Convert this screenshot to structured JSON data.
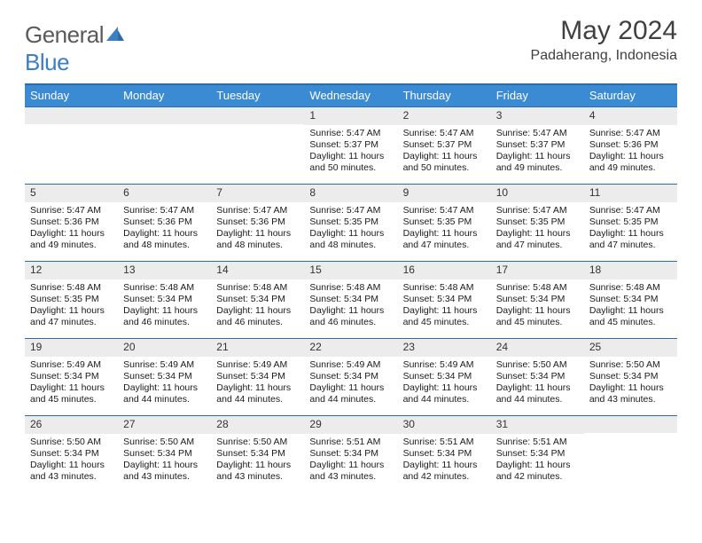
{
  "logo": {
    "word1": "General",
    "word2": "Blue"
  },
  "title": "May 2024",
  "location": "Padaherang, Indonesia",
  "header_bg": "#3b8bd4",
  "header_border": "#2e6da4",
  "daynum_bg": "#ececec",
  "text_color": "#1a1a1a",
  "day_names": [
    "Sunday",
    "Monday",
    "Tuesday",
    "Wednesday",
    "Thursday",
    "Friday",
    "Saturday"
  ],
  "weeks": [
    [
      {
        "n": "",
        "sr": "",
        "ss": "",
        "d1": "",
        "d2": ""
      },
      {
        "n": "",
        "sr": "",
        "ss": "",
        "d1": "",
        "d2": ""
      },
      {
        "n": "",
        "sr": "",
        "ss": "",
        "d1": "",
        "d2": ""
      },
      {
        "n": "1",
        "sr": "Sunrise: 5:47 AM",
        "ss": "Sunset: 5:37 PM",
        "d1": "Daylight: 11 hours",
        "d2": "and 50 minutes."
      },
      {
        "n": "2",
        "sr": "Sunrise: 5:47 AM",
        "ss": "Sunset: 5:37 PM",
        "d1": "Daylight: 11 hours",
        "d2": "and 50 minutes."
      },
      {
        "n": "3",
        "sr": "Sunrise: 5:47 AM",
        "ss": "Sunset: 5:37 PM",
        "d1": "Daylight: 11 hours",
        "d2": "and 49 minutes."
      },
      {
        "n": "4",
        "sr": "Sunrise: 5:47 AM",
        "ss": "Sunset: 5:36 PM",
        "d1": "Daylight: 11 hours",
        "d2": "and 49 minutes."
      }
    ],
    [
      {
        "n": "5",
        "sr": "Sunrise: 5:47 AM",
        "ss": "Sunset: 5:36 PM",
        "d1": "Daylight: 11 hours",
        "d2": "and 49 minutes."
      },
      {
        "n": "6",
        "sr": "Sunrise: 5:47 AM",
        "ss": "Sunset: 5:36 PM",
        "d1": "Daylight: 11 hours",
        "d2": "and 48 minutes."
      },
      {
        "n": "7",
        "sr": "Sunrise: 5:47 AM",
        "ss": "Sunset: 5:36 PM",
        "d1": "Daylight: 11 hours",
        "d2": "and 48 minutes."
      },
      {
        "n": "8",
        "sr": "Sunrise: 5:47 AM",
        "ss": "Sunset: 5:35 PM",
        "d1": "Daylight: 11 hours",
        "d2": "and 48 minutes."
      },
      {
        "n": "9",
        "sr": "Sunrise: 5:47 AM",
        "ss": "Sunset: 5:35 PM",
        "d1": "Daylight: 11 hours",
        "d2": "and 47 minutes."
      },
      {
        "n": "10",
        "sr": "Sunrise: 5:47 AM",
        "ss": "Sunset: 5:35 PM",
        "d1": "Daylight: 11 hours",
        "d2": "and 47 minutes."
      },
      {
        "n": "11",
        "sr": "Sunrise: 5:47 AM",
        "ss": "Sunset: 5:35 PM",
        "d1": "Daylight: 11 hours",
        "d2": "and 47 minutes."
      }
    ],
    [
      {
        "n": "12",
        "sr": "Sunrise: 5:48 AM",
        "ss": "Sunset: 5:35 PM",
        "d1": "Daylight: 11 hours",
        "d2": "and 47 minutes."
      },
      {
        "n": "13",
        "sr": "Sunrise: 5:48 AM",
        "ss": "Sunset: 5:34 PM",
        "d1": "Daylight: 11 hours",
        "d2": "and 46 minutes."
      },
      {
        "n": "14",
        "sr": "Sunrise: 5:48 AM",
        "ss": "Sunset: 5:34 PM",
        "d1": "Daylight: 11 hours",
        "d2": "and 46 minutes."
      },
      {
        "n": "15",
        "sr": "Sunrise: 5:48 AM",
        "ss": "Sunset: 5:34 PM",
        "d1": "Daylight: 11 hours",
        "d2": "and 46 minutes."
      },
      {
        "n": "16",
        "sr": "Sunrise: 5:48 AM",
        "ss": "Sunset: 5:34 PM",
        "d1": "Daylight: 11 hours",
        "d2": "and 45 minutes."
      },
      {
        "n": "17",
        "sr": "Sunrise: 5:48 AM",
        "ss": "Sunset: 5:34 PM",
        "d1": "Daylight: 11 hours",
        "d2": "and 45 minutes."
      },
      {
        "n": "18",
        "sr": "Sunrise: 5:48 AM",
        "ss": "Sunset: 5:34 PM",
        "d1": "Daylight: 11 hours",
        "d2": "and 45 minutes."
      }
    ],
    [
      {
        "n": "19",
        "sr": "Sunrise: 5:49 AM",
        "ss": "Sunset: 5:34 PM",
        "d1": "Daylight: 11 hours",
        "d2": "and 45 minutes."
      },
      {
        "n": "20",
        "sr": "Sunrise: 5:49 AM",
        "ss": "Sunset: 5:34 PM",
        "d1": "Daylight: 11 hours",
        "d2": "and 44 minutes."
      },
      {
        "n": "21",
        "sr": "Sunrise: 5:49 AM",
        "ss": "Sunset: 5:34 PM",
        "d1": "Daylight: 11 hours",
        "d2": "and 44 minutes."
      },
      {
        "n": "22",
        "sr": "Sunrise: 5:49 AM",
        "ss": "Sunset: 5:34 PM",
        "d1": "Daylight: 11 hours",
        "d2": "and 44 minutes."
      },
      {
        "n": "23",
        "sr": "Sunrise: 5:49 AM",
        "ss": "Sunset: 5:34 PM",
        "d1": "Daylight: 11 hours",
        "d2": "and 44 minutes."
      },
      {
        "n": "24",
        "sr": "Sunrise: 5:50 AM",
        "ss": "Sunset: 5:34 PM",
        "d1": "Daylight: 11 hours",
        "d2": "and 44 minutes."
      },
      {
        "n": "25",
        "sr": "Sunrise: 5:50 AM",
        "ss": "Sunset: 5:34 PM",
        "d1": "Daylight: 11 hours",
        "d2": "and 43 minutes."
      }
    ],
    [
      {
        "n": "26",
        "sr": "Sunrise: 5:50 AM",
        "ss": "Sunset: 5:34 PM",
        "d1": "Daylight: 11 hours",
        "d2": "and 43 minutes."
      },
      {
        "n": "27",
        "sr": "Sunrise: 5:50 AM",
        "ss": "Sunset: 5:34 PM",
        "d1": "Daylight: 11 hours",
        "d2": "and 43 minutes."
      },
      {
        "n": "28",
        "sr": "Sunrise: 5:50 AM",
        "ss": "Sunset: 5:34 PM",
        "d1": "Daylight: 11 hours",
        "d2": "and 43 minutes."
      },
      {
        "n": "29",
        "sr": "Sunrise: 5:51 AM",
        "ss": "Sunset: 5:34 PM",
        "d1": "Daylight: 11 hours",
        "d2": "and 43 minutes."
      },
      {
        "n": "30",
        "sr": "Sunrise: 5:51 AM",
        "ss": "Sunset: 5:34 PM",
        "d1": "Daylight: 11 hours",
        "d2": "and 42 minutes."
      },
      {
        "n": "31",
        "sr": "Sunrise: 5:51 AM",
        "ss": "Sunset: 5:34 PM",
        "d1": "Daylight: 11 hours",
        "d2": "and 42 minutes."
      },
      {
        "n": "",
        "sr": "",
        "ss": "",
        "d1": "",
        "d2": ""
      }
    ]
  ]
}
